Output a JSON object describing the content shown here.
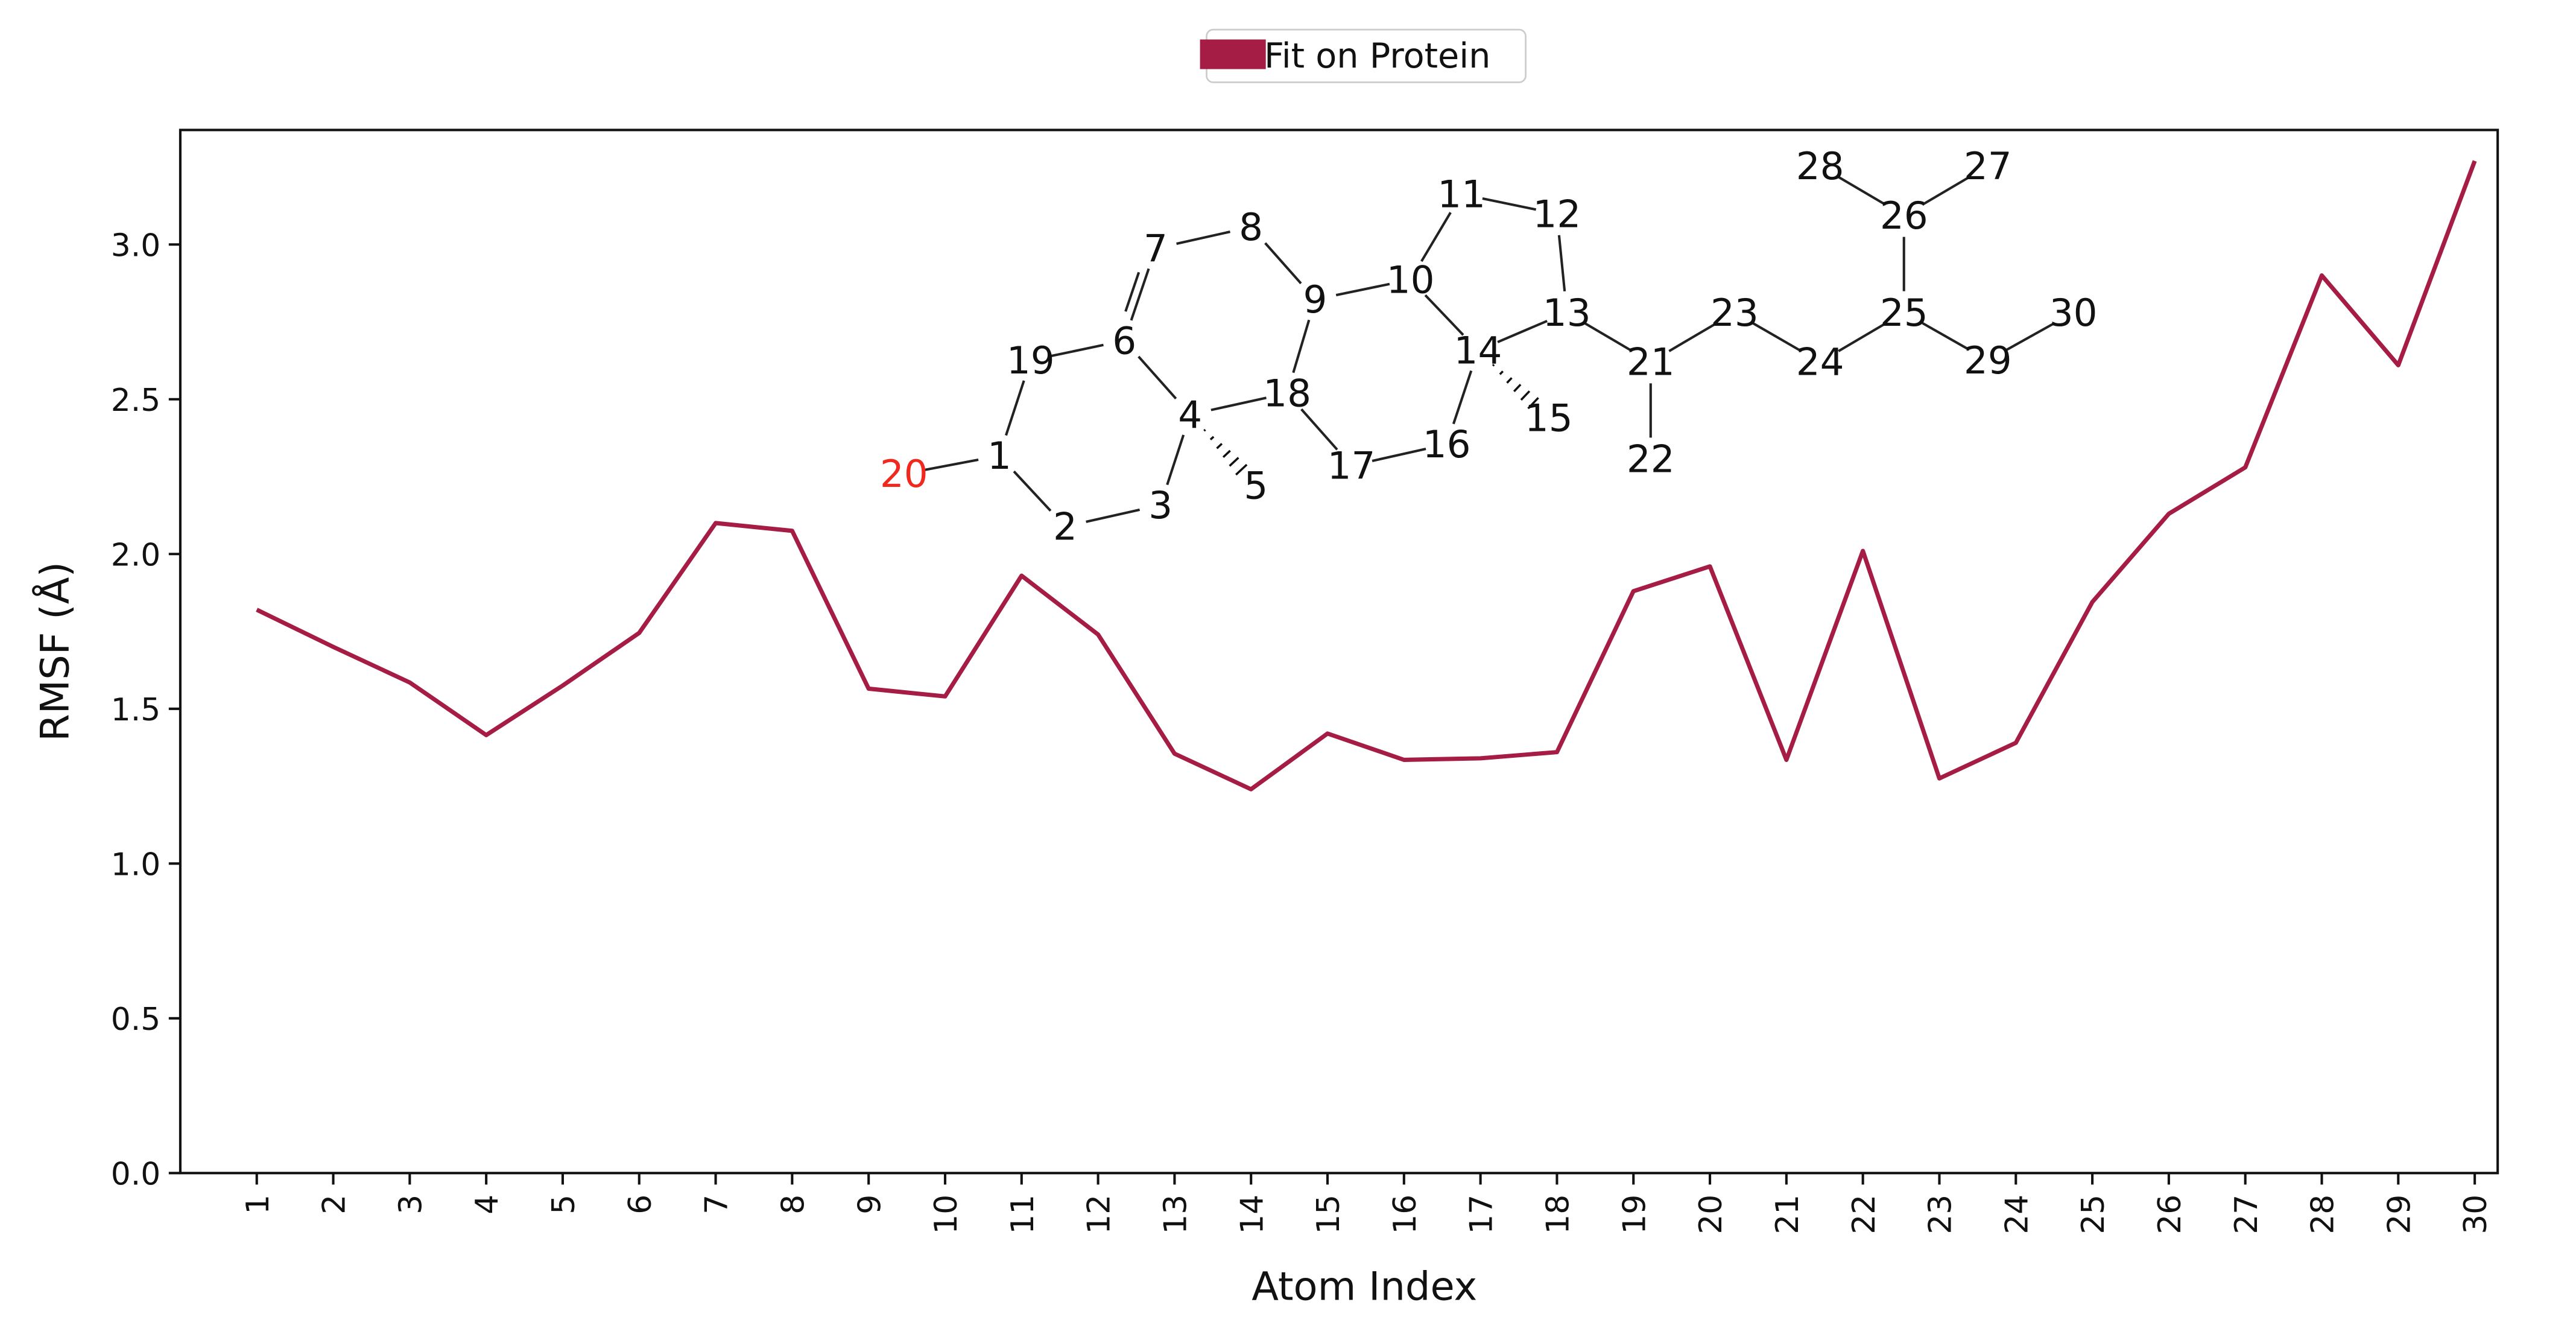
{
  "chart_data": {
    "type": "line",
    "x_label": "Atom Index",
    "y_label": "RMSF (Å)",
    "categories": [
      "1",
      "2",
      "3",
      "4",
      "5",
      "6",
      "7",
      "8",
      "9",
      "10",
      "11",
      "12",
      "13",
      "14",
      "15",
      "16",
      "17",
      "18",
      "19",
      "20",
      "21",
      "22",
      "23",
      "24",
      "25",
      "26",
      "27",
      "28",
      "29",
      "30"
    ],
    "series": [
      {
        "name": "Fit on Protein",
        "color": "#a51c45",
        "values": [
          1.82,
          1.7,
          1.585,
          1.415,
          1.575,
          1.745,
          2.1,
          2.075,
          1.565,
          1.54,
          1.93,
          1.74,
          1.355,
          1.24,
          1.42,
          1.335,
          1.34,
          1.36,
          1.88,
          1.96,
          1.335,
          2.01,
          1.275,
          1.39,
          1.845,
          2.13,
          2.28,
          2.9,
          2.61,
          3.27
        ]
      }
    ],
    "ylim": [
      0,
      3.37
    ],
    "yticks": [
      {
        "value": 0,
        "label": "0.0"
      },
      0.5,
      {
        "value": 1,
        "label": "1.0"
      },
      1.5,
      {
        "value": 2,
        "label": "2.0"
      },
      2.5,
      {
        "value": 3,
        "label": "3.0"
      }
    ],
    "grid": false,
    "legend": "upper center",
    "molecule": {
      "atoms": [
        {
          "label": "1"
        },
        {
          "label": "2"
        },
        {
          "label": "3"
        },
        {
          "label": "4"
        },
        {
          "label": "5"
        },
        {
          "label": "6"
        },
        {
          "label": "7"
        },
        {
          "label": "8"
        },
        {
          "label": "9"
        },
        {
          "label": "10"
        },
        {
          "label": "11"
        },
        {
          "label": "12"
        },
        {
          "label": "13"
        },
        {
          "label": "14"
        },
        {
          "label": "15"
        },
        {
          "label": "16"
        },
        {
          "label": "17"
        },
        {
          "label": "18"
        },
        {
          "label": "19"
        },
        {
          "label": "20",
          "color": "#f0281e"
        },
        {
          "label": "21"
        },
        {
          "label": "22"
        },
        {
          "label": "23"
        },
        {
          "label": "24"
        },
        {
          "label": "25"
        },
        {
          "label": "26"
        },
        {
          "label": "27"
        },
        {
          "label": "28"
        },
        {
          "label": "29"
        },
        {
          "label": "30"
        }
      ]
    }
  }
}
